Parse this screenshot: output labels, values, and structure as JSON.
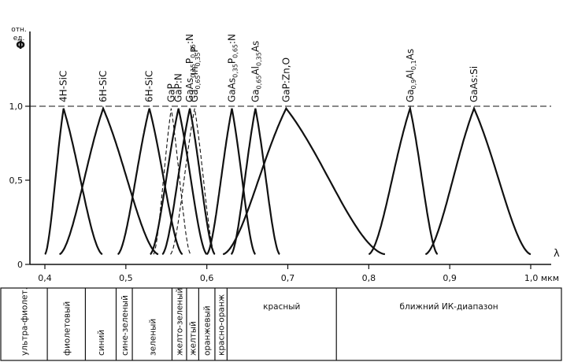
{
  "chart_data": {
    "type": "line",
    "ylabel": "Φ",
    "yunit": "отн. ед.",
    "xunit": "мкм",
    "xlim": [
      0.4,
      1.0
    ],
    "ylim": [
      0,
      1.0
    ],
    "x_ticks": [
      "0,4",
      "0,5",
      "0,6",
      "0,7",
      "0,8",
      "0,9",
      "1,0 мкм"
    ],
    "y_ticks": [
      "0",
      "0,5",
      "1,0"
    ],
    "x_axis_symbol": "λ",
    "reference_line_y": 1.0,
    "series": [
      {
        "name": "4H-SiC",
        "label_parts": [
          [
            "4H-SiC",
            ""
          ]
        ],
        "peak": 0.423,
        "left": 0.4,
        "right": 0.471,
        "style": "solid"
      },
      {
        "name": "6H-SiC",
        "label_parts": [
          [
            "6H-SiC",
            ""
          ]
        ],
        "peak": 0.472,
        "left": 0.418,
        "right": 0.54,
        "style": "solid"
      },
      {
        "name": "6H-SiC",
        "label_parts": [
          [
            "6H-SiC",
            ""
          ]
        ],
        "peak": 0.529,
        "left": 0.49,
        "right": 0.57,
        "style": "solid"
      },
      {
        "name": "GaP",
        "label_parts": [
          [
            "GaP",
            ""
          ]
        ],
        "peak": 0.556,
        "left": 0.534,
        "right": 0.58,
        "style": "dashed"
      },
      {
        "name": "GaP:N",
        "label_parts": [
          [
            "GaP:N",
            ""
          ]
        ],
        "peak": 0.565,
        "left": 0.53,
        "right": 0.6,
        "style": "solid"
      },
      {
        "name": "GaAs0,15P0,85:N",
        "label_parts": [
          [
            "GaAs",
            ""
          ],
          [
            "0,15",
            "sub"
          ],
          [
            "P",
            ""
          ],
          [
            "0,85",
            "sub"
          ],
          [
            ":N",
            ""
          ]
        ],
        "peak": 0.579,
        "left": 0.545,
        "right": 0.61,
        "style": "solid"
      },
      {
        "name": "Ga0,65In0,35P",
        "label_parts": [
          [
            "Ga",
            ""
          ],
          [
            "0,65",
            "sub"
          ],
          [
            "In",
            ""
          ],
          [
            "0,35",
            "sub"
          ],
          [
            "P",
            ""
          ]
        ],
        "peak": 0.585,
        "left": 0.555,
        "right": 0.61,
        "style": "dashed"
      },
      {
        "name": "GaAs0,35P0,65:N",
        "label_parts": [
          [
            "GaAs",
            ""
          ],
          [
            "0,35",
            "sub"
          ],
          [
            "P",
            ""
          ],
          [
            "0,65",
            "sub"
          ],
          [
            ":N",
            ""
          ]
        ],
        "peak": 0.631,
        "left": 0.6,
        "right": 0.66,
        "style": "solid"
      },
      {
        "name": "Ga0,65Al0,35As",
        "label_parts": [
          [
            "Ga",
            ""
          ],
          [
            "0,65",
            "sub"
          ],
          [
            "Al",
            ""
          ],
          [
            "0,35",
            "sub"
          ],
          [
            "As",
            ""
          ]
        ],
        "peak": 0.66,
        "left": 0.63,
        "right": 0.69,
        "style": "solid"
      },
      {
        "name": "GaP:Zn,O",
        "label_parts": [
          [
            "GaP:Zn,O",
            ""
          ]
        ],
        "peak": 0.698,
        "left": 0.62,
        "right": 0.82,
        "style": "solid"
      },
      {
        "name": "Ga0,9Al0,1As",
        "label_parts": [
          [
            "Ga",
            ""
          ],
          [
            "0,9",
            "sub"
          ],
          [
            "Al",
            ""
          ],
          [
            "0,1",
            "sub"
          ],
          [
            "As",
            ""
          ]
        ],
        "peak": 0.851,
        "left": 0.8,
        "right": 0.885,
        "style": "solid"
      },
      {
        "name": "GaAs:Si",
        "label_parts": [
          [
            "GaAs:Si",
            ""
          ]
        ],
        "peak": 0.93,
        "left": 0.87,
        "right": 1.0,
        "style": "solid"
      }
    ],
    "color_bands": [
      {
        "label": "ультра-фиолет.",
        "from": 0.3,
        "to": 0.403,
        "vertical": true
      },
      {
        "label": "фиолетовый",
        "from": 0.403,
        "to": 0.45,
        "vertical": true
      },
      {
        "label": "синий",
        "from": 0.45,
        "to": 0.488,
        "vertical": true
      },
      {
        "label": "сине-зеленый",
        "from": 0.488,
        "to": 0.508,
        "vertical": true
      },
      {
        "label": "зеленый",
        "from": 0.508,
        "to": 0.557,
        "vertical": true
      },
      {
        "label": "желто-зеленый",
        "from": 0.557,
        "to": 0.575,
        "vertical": true
      },
      {
        "label": "желтый",
        "from": 0.575,
        "to": 0.59,
        "vertical": true
      },
      {
        "label": "оранжевый",
        "from": 0.59,
        "to": 0.61,
        "vertical": true
      },
      {
        "label": "красно-оранж",
        "from": 0.61,
        "to": 0.625,
        "vertical": true
      },
      {
        "label": "красный",
        "from": 0.625,
        "to": 0.76,
        "vertical": false
      },
      {
        "label": "ближний ИК-диапазон",
        "from": 0.76,
        "to": 1.06,
        "vertical": false
      }
    ]
  }
}
